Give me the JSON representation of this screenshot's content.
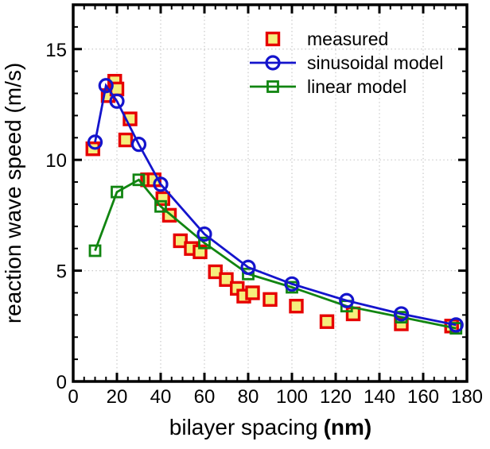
{
  "figure": {
    "xlabel_main": "bilayer spacing",
    "xlabel_unit": "(nm)",
    "ylabel": "reaction wave speed (m/s)"
  },
  "colors": {
    "measured_edge": "#e60000",
    "measured_fill": "#f5ee7c",
    "sinusoidal": "#1414cc",
    "linear": "#118511",
    "grid": "#c9c9c9",
    "frame": "#000000"
  },
  "chart_data": {
    "type": "scatter",
    "title": "",
    "xlabel": "bilayer spacing (nm)",
    "ylabel": "reaction wave speed (m/s)",
    "xlim": [
      0,
      180
    ],
    "ylim": [
      0,
      17
    ],
    "x_major_step": 20,
    "x_minor_step": 5,
    "y_major_step": 5,
    "y_minor_step": 1,
    "grid": "dotted at major ticks",
    "legend_position": "top-right inside, no frame",
    "x_ticks": {
      "values": [
        0,
        20,
        40,
        60,
        80,
        100,
        120,
        140,
        160,
        180
      ],
      "labels": [
        "0",
        "20",
        "40",
        "60",
        "80",
        "100",
        "120",
        "140",
        "160",
        "180"
      ]
    },
    "y_ticks": {
      "values": [
        0,
        5,
        10,
        15
      ],
      "labels": [
        "0",
        "5",
        "10",
        "15"
      ]
    },
    "series": [
      {
        "name": "measured",
        "type": "scatter",
        "marker": "square",
        "marker_size": 15,
        "marker_fill": "#f5ee7c",
        "marker_edge": "#e60000",
        "edge_width": 3.4,
        "line": false,
        "points": [
          [
            9,
            10.5
          ],
          [
            16,
            12.9
          ],
          [
            19,
            13.55
          ],
          [
            20,
            13.2
          ],
          [
            24,
            10.9
          ],
          [
            26,
            11.85
          ],
          [
            34,
            9.1
          ],
          [
            37,
            9.1
          ],
          [
            41,
            8.25
          ],
          [
            44,
            7.5
          ],
          [
            49,
            6.35
          ],
          [
            54,
            6.0
          ],
          [
            58,
            5.85
          ],
          [
            65,
            4.95
          ],
          [
            70,
            4.6
          ],
          [
            75,
            4.2
          ],
          [
            78,
            3.85
          ],
          [
            82,
            4.0
          ],
          [
            90,
            3.7
          ],
          [
            102,
            3.4
          ],
          [
            116,
            2.7
          ],
          [
            128,
            3.05
          ],
          [
            150,
            2.6
          ],
          [
            173,
            2.5
          ]
        ]
      },
      {
        "name": "sinusoidal model",
        "type": "line",
        "marker": "circle",
        "marker_size": 16,
        "marker_fill": "none",
        "marker_edge": "#1414cc",
        "edge_width": 3.2,
        "line": true,
        "line_color": "#1414cc",
        "line_width": 2.8,
        "points": [
          [
            10,
            10.8
          ],
          [
            15,
            13.35
          ],
          [
            20,
            12.65
          ],
          [
            30,
            10.7
          ],
          [
            40,
            8.9
          ],
          [
            60,
            6.65
          ],
          [
            80,
            5.15
          ],
          [
            100,
            4.4
          ],
          [
            125,
            3.65
          ],
          [
            150,
            3.05
          ],
          [
            175,
            2.55
          ]
        ]
      },
      {
        "name": "linear model",
        "type": "line",
        "marker": "square",
        "marker_size": 13,
        "marker_fill": "none",
        "marker_edge": "#118511",
        "edge_width": 2.8,
        "line": true,
        "line_color": "#118511",
        "line_width": 2.8,
        "points": [
          [
            10,
            5.9
          ],
          [
            20,
            8.55
          ],
          [
            30,
            9.1
          ],
          [
            40,
            7.9
          ],
          [
            60,
            6.25
          ],
          [
            80,
            4.85
          ],
          [
            100,
            4.25
          ],
          [
            125,
            3.4
          ],
          [
            150,
            2.9
          ],
          [
            175,
            2.4
          ]
        ]
      }
    ]
  }
}
